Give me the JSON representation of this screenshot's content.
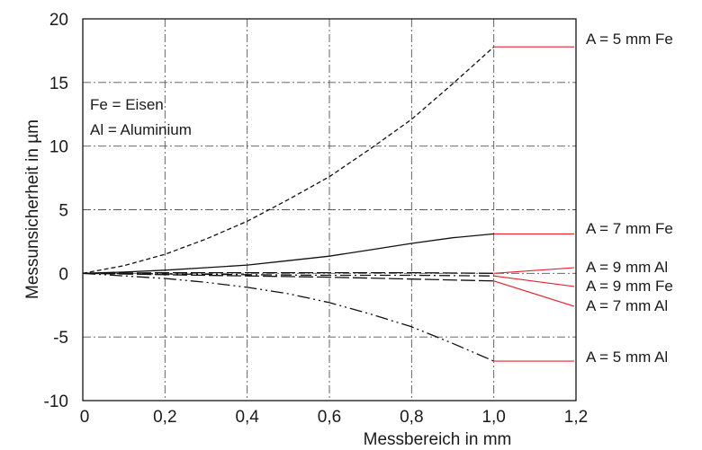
{
  "chart_data": {
    "type": "line",
    "xlabel": "Messbereich in mm",
    "ylabel": "Messunsicherheit in µm",
    "xlim": [
      0,
      1.2
    ],
    "ylim": [
      -10,
      20
    ],
    "x_ticks": [
      "0",
      "0,2",
      "0,4",
      "0,6",
      "0,8",
      "1,0",
      "1,2"
    ],
    "y_ticks": [
      "-10",
      "-5",
      "0",
      "5",
      "10",
      "15",
      "20"
    ],
    "grid": true,
    "annotations": [
      "Fe = Eisen",
      "Al = Aluminium"
    ],
    "series": [
      {
        "name": "A =  5 mm Fe",
        "line_style": "dashed",
        "x": [
          0,
          0.1,
          0.2,
          0.3,
          0.4,
          0.5,
          0.6,
          0.7,
          0.8,
          0.9,
          1.0
        ],
        "y": [
          0,
          0.6,
          1.5,
          2.7,
          4.1,
          5.8,
          7.6,
          9.8,
          12.1,
          14.9,
          17.8
        ]
      },
      {
        "name": "A = 7 mm Fe",
        "line_style": "solid",
        "x": [
          0,
          0.1,
          0.2,
          0.3,
          0.4,
          0.5,
          0.6,
          0.7,
          0.8,
          0.9,
          1.0
        ],
        "y": [
          0,
          0.1,
          0.25,
          0.45,
          0.65,
          1.0,
          1.35,
          1.85,
          2.35,
          2.8,
          3.1
        ]
      },
      {
        "name": "A = 9 mm Al",
        "line_style": "long-dash",
        "x": [
          0,
          0.2,
          0.4,
          0.6,
          0.8,
          1.0
        ],
        "y": [
          0,
          0.05,
          0.05,
          0.05,
          0.05,
          0.0
        ]
      },
      {
        "name": "A = 9 mm Fe",
        "line_style": "dash-dot",
        "x": [
          0,
          0.2,
          0.4,
          0.6,
          0.8,
          1.0
        ],
        "y": [
          0,
          -0.05,
          -0.1,
          -0.15,
          -0.15,
          -0.2
        ]
      },
      {
        "name": "A = 7 mm Al",
        "line_style": "long-dash",
        "x": [
          0,
          0.2,
          0.4,
          0.6,
          0.8,
          1.0
        ],
        "y": [
          0,
          -0.1,
          -0.2,
          -0.3,
          -0.45,
          -0.6
        ]
      },
      {
        "name": "A = 5 mm Al",
        "line_style": "dash-dot-dot",
        "x": [
          0,
          0.1,
          0.2,
          0.3,
          0.4,
          0.5,
          0.6,
          0.7,
          0.8,
          0.9,
          1.0
        ],
        "y": [
          0,
          -0.2,
          -0.4,
          -0.7,
          -1.1,
          -1.6,
          -2.3,
          -3.2,
          -4.2,
          -5.5,
          -6.9
        ]
      }
    ],
    "colors": {
      "curves": "#111111",
      "leaders": "#e8202a",
      "grid": "#555555"
    }
  }
}
